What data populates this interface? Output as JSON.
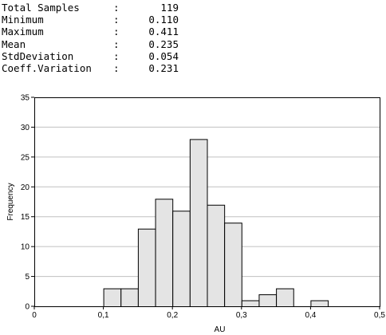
{
  "stats": [
    {
      "label": "Total Samples",
      "colon": ":",
      "value": "119"
    },
    {
      "label": "Minimum",
      "colon": ":",
      "value": "0.110"
    },
    {
      "label": "Maximum",
      "colon": ":",
      "value": "0.411"
    },
    {
      "label": "Mean",
      "colon": ":",
      "value": "0.235"
    },
    {
      "label": "StdDeviation",
      "colon": ":",
      "value": "0.054"
    },
    {
      "label": "Coeff.Variation",
      "colon": ":",
      "value": "0.231"
    }
  ],
  "chart_data": {
    "type": "bar",
    "xlabel": "AU",
    "ylabel": "Frequency",
    "xlim": [
      0,
      0.5
    ],
    "ylim": [
      0,
      35
    ],
    "x_ticks": [
      "0",
      "0,1",
      "0,2",
      "0,3",
      "0,4",
      "0,5"
    ],
    "y_ticks": [
      "0",
      "5",
      "10",
      "15",
      "20",
      "25",
      "30",
      "35"
    ],
    "grid": true,
    "bins": [
      {
        "start": 0.1,
        "end": 0.125,
        "value": 3
      },
      {
        "start": 0.125,
        "end": 0.15,
        "value": 3
      },
      {
        "start": 0.15,
        "end": 0.175,
        "value": 13
      },
      {
        "start": 0.175,
        "end": 0.2,
        "value": 18
      },
      {
        "start": 0.2,
        "end": 0.225,
        "value": 16
      },
      {
        "start": 0.225,
        "end": 0.25,
        "value": 28
      },
      {
        "start": 0.25,
        "end": 0.275,
        "value": 17
      },
      {
        "start": 0.275,
        "end": 0.3,
        "value": 14
      },
      {
        "start": 0.3,
        "end": 0.325,
        "value": 1
      },
      {
        "start": 0.325,
        "end": 0.35,
        "value": 2
      },
      {
        "start": 0.35,
        "end": 0.375,
        "value": 3
      },
      {
        "start": 0.375,
        "end": 0.4,
        "value": 0
      },
      {
        "start": 0.4,
        "end": 0.425,
        "value": 1
      }
    ],
    "colors": {
      "bar_fill": "#e4e4e4",
      "bar_stroke": "#000000",
      "grid": "#c0c0c0",
      "axis": "#000000"
    }
  }
}
